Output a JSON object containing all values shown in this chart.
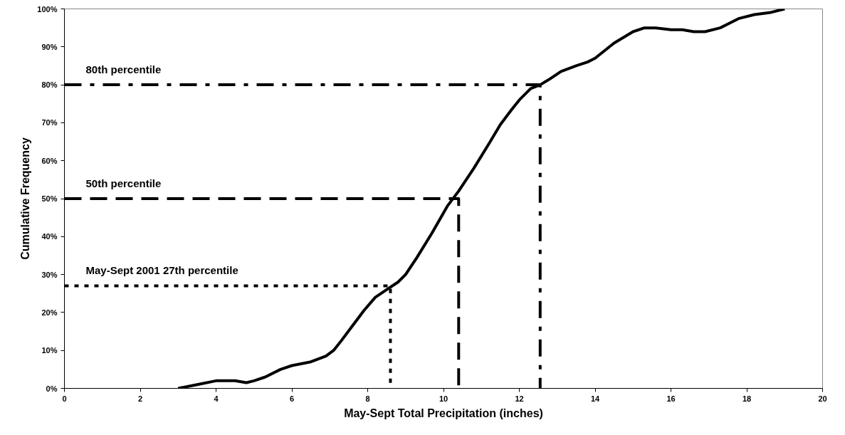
{
  "chart_data": {
    "type": "line",
    "xlabel": "May-Sept Total Precipitation (inches)",
    "ylabel": "Cumulative Frequency",
    "xlim": [
      0,
      20
    ],
    "xticks": [
      0,
      2,
      4,
      6,
      8,
      10,
      12,
      14,
      16,
      18,
      20
    ],
    "ylim": [
      0,
      100
    ],
    "yticks": [
      {
        "value": 0,
        "label": "0%"
      },
      {
        "value": 10,
        "label": "10%"
      },
      {
        "value": 20,
        "label": "20%"
      },
      {
        "value": 30,
        "label": "30%"
      },
      {
        "value": 40,
        "label": "40%"
      },
      {
        "value": 50,
        "label": "50%"
      },
      {
        "value": 60,
        "label": "60%"
      },
      {
        "value": 70,
        "label": "70%"
      },
      {
        "value": 80,
        "label": "80%"
      },
      {
        "value": 90,
        "label": "90%"
      },
      {
        "value": 100,
        "label": "100%"
      }
    ],
    "grid": false,
    "marker": "none",
    "series": [
      {
        "color": "#000000",
        "line_style": "solid",
        "x": [
          3.0,
          3.5,
          4.0,
          4.5,
          4.8,
          5.0,
          5.3,
          5.7,
          6.0,
          6.5,
          6.9,
          7.1,
          7.3,
          7.6,
          7.9,
          8.2,
          8.5,
          8.8,
          9.0,
          9.3,
          9.7,
          10.1,
          10.4,
          10.8,
          11.2,
          11.5,
          11.8,
          12.0,
          12.3,
          12.55,
          12.8,
          13.1,
          13.5,
          13.8,
          14.0,
          14.5,
          15.0,
          15.3,
          15.6,
          16.0,
          16.3,
          16.6,
          16.9,
          17.3,
          17.8,
          18.2,
          18.6,
          19.0
        ],
        "values": [
          0,
          1,
          2,
          2,
          1.5,
          2,
          3,
          5,
          6,
          7,
          8.5,
          10,
          12.5,
          16.5,
          20.5,
          24,
          26,
          28,
          30,
          34.5,
          41,
          48,
          52,
          58,
          64.5,
          69.5,
          73.5,
          76,
          79,
          80,
          81.5,
          83.5,
          85,
          86,
          87,
          91,
          94,
          95,
          95,
          94.5,
          94.5,
          94,
          94,
          95,
          97.5,
          98.5,
          99,
          100
        ]
      },
      {
        "name": "80th percentile",
        "color": "#000000",
        "line_style": "dashdot",
        "x": [
          0,
          12.55,
          12.55
        ],
        "values": [
          80,
          80,
          0
        ]
      },
      {
        "name": "50th percentile",
        "color": "#000000",
        "line_style": "dashed",
        "x": [
          0,
          10.4,
          10.4
        ],
        "values": [
          50,
          50,
          0
        ]
      },
      {
        "name": "May-Sept 2001 27th percentile",
        "color": "#000000",
        "line_style": "dotted",
        "x": [
          0,
          8.6,
          8.6
        ],
        "values": [
          27,
          27,
          0
        ]
      }
    ]
  }
}
